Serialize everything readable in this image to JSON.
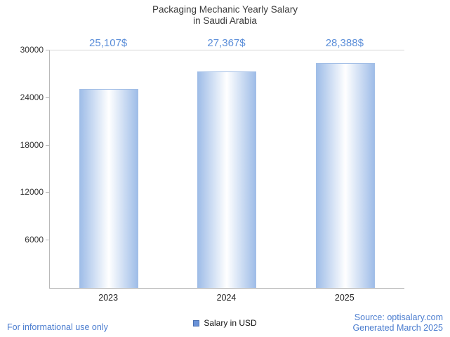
{
  "title": {
    "line1": "Packaging Mechanic Yearly Salary",
    "line2": "in Saudi Arabia"
  },
  "chart_data": {
    "type": "bar",
    "title": "Packaging Mechanic Yearly Salary in Saudi Arabia",
    "categories": [
      "2023",
      "2024",
      "2025"
    ],
    "values": [
      25107,
      27367,
      28388
    ],
    "value_labels": [
      "25,107$",
      "27,367$",
      "28,388$"
    ],
    "xlabel": "",
    "ylabel": "",
    "ylim": [
      0,
      30000
    ],
    "yticks": [
      6000,
      12000,
      18000,
      24000,
      30000
    ],
    "grid": false,
    "legend_entries": [
      "Salary in USD"
    ],
    "legend_position": "bottom-center",
    "bar_gradient": [
      "#9fbde8",
      "#ffffff",
      "#9fbde8"
    ]
  },
  "legend": {
    "label": "Salary in USD",
    "swatch_color": "#6a92d8"
  },
  "footer": {
    "left": "For informational use only",
    "source": "Source: optisalary.com",
    "generated": "Generated March 2025"
  },
  "colors": {
    "title": "#3a3a3a",
    "value_label": "#5b8ed9",
    "footer_text": "#4a7ccf",
    "axis": "#b9b9b9"
  }
}
